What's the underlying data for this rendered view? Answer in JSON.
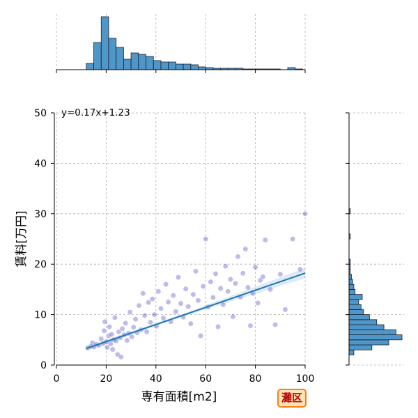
{
  "chart_data": {
    "type": "scatter",
    "layout": "joint-plot",
    "xlabel": "専有面積[m2]",
    "ylabel": "賃料[万円]",
    "xlim": [
      0,
      100
    ],
    "ylim": [
      0,
      50
    ],
    "xticks": [
      0,
      20,
      40,
      60,
      80,
      100
    ],
    "yticks": [
      0,
      10,
      20,
      30,
      40,
      50
    ],
    "grid": true,
    "annotation": "y=0.17x+1.23",
    "regression": {
      "slope": 0.17,
      "intercept": 1.23,
      "x_range": [
        12,
        100
      ]
    },
    "points": [
      [
        12.6,
        3.4
      ],
      [
        13.8,
        3.7
      ],
      [
        14.5,
        4.4
      ],
      [
        15.2,
        3.6
      ],
      [
        16.0,
        4.1
      ],
      [
        17.1,
        3.9
      ],
      [
        18.0,
        5.2
      ],
      [
        18.8,
        4.3
      ],
      [
        19.2,
        6.8
      ],
      [
        19.5,
        8.6
      ],
      [
        20.1,
        4.6
      ],
      [
        20.4,
        3.5
      ],
      [
        21.0,
        5.8
      ],
      [
        21.3,
        7.6
      ],
      [
        21.8,
        4.2
      ],
      [
        22.2,
        6.1
      ],
      [
        22.6,
        3.1
      ],
      [
        23.0,
        5.0
      ],
      [
        23.5,
        9.4
      ],
      [
        24.0,
        4.8
      ],
      [
        24.6,
        2.1
      ],
      [
        25.1,
        6.6
      ],
      [
        25.6,
        5.4
      ],
      [
        26.0,
        1.6
      ],
      [
        26.5,
        7.2
      ],
      [
        27.2,
        6.0
      ],
      [
        27.8,
        8.3
      ],
      [
        28.4,
        4.9
      ],
      [
        29.0,
        6.3
      ],
      [
        29.6,
        10.5
      ],
      [
        30.3,
        5.6
      ],
      [
        31.0,
        7.5
      ],
      [
        31.8,
        9.1
      ],
      [
        32.5,
        6.4
      ],
      [
        33.2,
        11.8
      ],
      [
        34.0,
        7.0
      ],
      [
        34.8,
        14.2
      ],
      [
        35.5,
        9.8
      ],
      [
        36.3,
        6.6
      ],
      [
        37.0,
        12.4
      ],
      [
        37.8,
        8.5
      ],
      [
        38.6,
        13.1
      ],
      [
        39.4,
        10.0
      ],
      [
        40.2,
        7.7
      ],
      [
        41.0,
        14.6
      ],
      [
        42.0,
        11.2
      ],
      [
        43.0,
        9.3
      ],
      [
        44.0,
        16.0
      ],
      [
        45.0,
        12.5
      ],
      [
        46.0,
        8.6
      ],
      [
        47.0,
        13.8
      ],
      [
        48.0,
        10.6
      ],
      [
        49.0,
        17.4
      ],
      [
        50.0,
        12.2
      ],
      [
        51.0,
        9.5
      ],
      [
        52.0,
        15.1
      ],
      [
        53.0,
        11.6
      ],
      [
        54.0,
        8.2
      ],
      [
        55.0,
        14.0
      ],
      [
        56.0,
        18.6
      ],
      [
        57.0,
        12.8
      ],
      [
        58.0,
        5.8
      ],
      [
        59.0,
        15.6
      ],
      [
        60.0,
        25.0
      ],
      [
        61.0,
        11.5
      ],
      [
        62.0,
        16.5
      ],
      [
        63.0,
        13.4
      ],
      [
        64.0,
        18.1
      ],
      [
        65.0,
        7.6
      ],
      [
        66.0,
        15.2
      ],
      [
        67.0,
        12.0
      ],
      [
        68.0,
        19.6
      ],
      [
        69.0,
        14.6
      ],
      [
        70.0,
        17.0
      ],
      [
        71.0,
        9.6
      ],
      [
        72.0,
        16.2
      ],
      [
        73.0,
        21.5
      ],
      [
        74.0,
        13.5
      ],
      [
        75.0,
        18.2
      ],
      [
        76.0,
        23.0
      ],
      [
        77.0,
        15.4
      ],
      [
        78.0,
        7.8
      ],
      [
        79.0,
        14.2
      ],
      [
        80.0,
        19.4
      ],
      [
        81.0,
        12.3
      ],
      [
        82.0,
        16.8
      ],
      [
        83.0,
        17.5
      ],
      [
        84.0,
        24.8
      ],
      [
        86.0,
        15.0
      ],
      [
        88.0,
        8.0
      ],
      [
        90.0,
        18.0
      ],
      [
        92.0,
        11.0
      ],
      [
        95.0,
        25.0
      ],
      [
        98.0,
        19.0
      ],
      [
        100.0,
        30.0
      ]
    ],
    "x_hist": {
      "bin_edges": [
        12,
        15,
        18,
        21,
        24,
        27,
        30,
        33,
        36,
        39,
        42,
        45,
        48,
        51,
        54,
        57,
        60,
        63,
        66,
        69,
        72,
        75,
        78,
        81,
        84,
        87,
        90,
        93,
        96,
        99
      ],
      "counts": [
        9,
        39,
        76,
        45,
        32,
        15,
        24,
        22,
        19,
        13,
        11,
        11,
        8,
        8,
        7,
        4,
        3,
        2,
        2,
        2,
        2,
        1,
        1,
        1,
        1,
        1,
        0,
        3,
        1
      ]
    },
    "y_hist": {
      "bin_edges": [
        2,
        3,
        4,
        5,
        6,
        7,
        8,
        9,
        10,
        11,
        12,
        13,
        14,
        15,
        16,
        17,
        18,
        19,
        20,
        21,
        22,
        23,
        24,
        25,
        26,
        27,
        28,
        29,
        30,
        31
      ],
      "counts": [
        4,
        19,
        33,
        44,
        39,
        29,
        23,
        17,
        12,
        10,
        8,
        11,
        5,
        4,
        3,
        2,
        1,
        1,
        1,
        0,
        0,
        0,
        0,
        1,
        0,
        0,
        0,
        0,
        1
      ]
    },
    "colors": {
      "points": "#1a0fb3",
      "regression": "#1f77b4",
      "histogram": "#4f97c9",
      "histogram_edge": "#1c1c2b",
      "annotation": "#0000cc",
      "grid": "#b0b0b0"
    }
  },
  "badge": {
    "label": "灘区"
  }
}
